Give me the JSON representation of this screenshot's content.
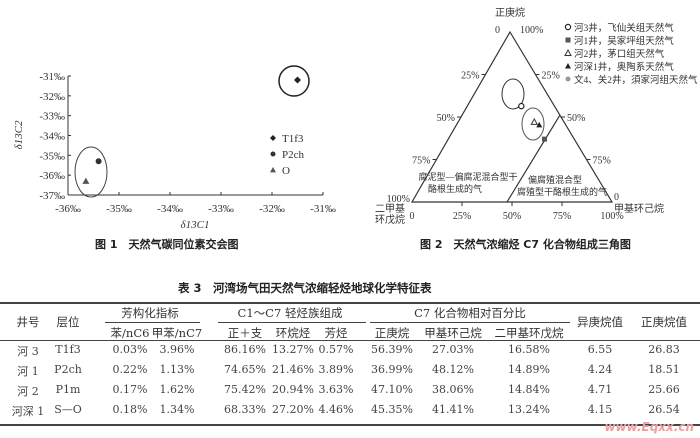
{
  "figure1": {
    "caption": "图 1　天然气碳同位素交会图",
    "chart_data": {
      "type": "scatter",
      "xlabel": "δ13C1",
      "ylabel": "δ13C2",
      "xlim": [
        -36,
        -31
      ],
      "ylim": [
        -37,
        -31
      ],
      "x_ticks": [
        "-36‰",
        "-35‰",
        "-34‰",
        "-33‰",
        "-32‰",
        "-31‰"
      ],
      "y_ticks": [
        "-31‰",
        "-32‰",
        "-33‰",
        "-34‰",
        "-35‰",
        "-36‰",
        "-37‰"
      ],
      "legend_position": "right",
      "series": [
        {
          "name": "T1f3",
          "marker": "diamond",
          "points": [
            [
              -31.5,
              -31.2
            ]
          ]
        },
        {
          "name": "P2ch",
          "marker": "circle",
          "points": [
            [
              -35.4,
              -35.3
            ]
          ]
        },
        {
          "name": "O",
          "marker": "triangle",
          "points": [
            [
              -35.65,
              -36.3
            ]
          ]
        }
      ]
    }
  },
  "figure2": {
    "caption": "图 2　天然气浓缩烃 C7 化合物组成三角图",
    "chart_data": {
      "type": "ternary",
      "apex_top": "正庚烷",
      "apex_right": "甲基环己烷",
      "apex_left": "二甲基环戊烷",
      "tick_labels": [
        "0",
        "25%",
        "50%",
        "75%",
        "100%"
      ],
      "regions": [
        "腐泥型—偏腐泥混合型干酪根生成的气",
        "偏腐殖混合型—腐殖型干酪根生成的气"
      ],
      "legend": [
        {
          "label": "河3井，飞仙关组天然气",
          "marker": "open-circle"
        },
        {
          "label": "河1井，吴家坪组天然气",
          "marker": "square"
        },
        {
          "label": "河2井，茅口组天然气",
          "marker": "open-triangle"
        },
        {
          "label": "河深1井，奥陶系天然气",
          "marker": "triangle"
        },
        {
          "label": "文4、关2井，須家河组天然气",
          "marker": "star"
        }
      ],
      "points": [
        {
          "well": "河3",
          "n_heptane": 56.39,
          "methylcyclohexane": 27.03,
          "dimethylcyclopentane": 16.58,
          "marker": "open-circle"
        },
        {
          "well": "河1",
          "n_heptane": 36.99,
          "methylcyclohexane": 48.12,
          "dimethylcyclopentane": 14.89,
          "marker": "square"
        },
        {
          "well": "河2",
          "n_heptane": 47.1,
          "methylcyclohexane": 38.06,
          "dimethylcyclopentane": 14.84,
          "marker": "open-triangle"
        },
        {
          "well": "河深1",
          "n_heptane": 45.35,
          "methylcyclohexane": 41.41,
          "dimethylcyclopentane": 13.24,
          "marker": "triangle"
        }
      ]
    }
  },
  "table3": {
    "title": "表 3　河湾场气田天然气浓缩轻烃地球化学特征表",
    "groups": [
      "芳构化指标",
      "C1～C7 轻烃族组成",
      "C7 化合物相对百分比"
    ],
    "headers": [
      "井号",
      "层位",
      "苯/nC6",
      "甲苯/nC7",
      "正＋支",
      "环烷烃",
      "芳烃",
      "正庚烷",
      "甲基环己烷",
      "二甲基环戊烷",
      "异庚烷值",
      "正庚烷值"
    ],
    "rows": [
      [
        "河 3",
        "T1f3",
        "0.03%",
        "3.96%",
        "86.16%",
        "13.27%",
        "0.57%",
        "56.39%",
        "27.03%",
        "16.58%",
        "6.55",
        "26.83"
      ],
      [
        "河 1",
        "P2ch",
        "0.22%",
        "1.13%",
        "74.65%",
        "21.46%",
        "3.89%",
        "36.99%",
        "48.12%",
        "14.89%",
        "4.24",
        "18.51"
      ],
      [
        "河 2",
        "P1m",
        "0.17%",
        "1.62%",
        "75.42%",
        "20.94%",
        "3.63%",
        "47.10%",
        "38.06%",
        "14.84%",
        "4.71",
        "25.66"
      ],
      [
        "河深 1",
        "S—O",
        "0.18%",
        "1.34%",
        "68.33%",
        "27.20%",
        "4.46%",
        "45.35%",
        "41.41%",
        "13.24%",
        "4.15",
        "26.54"
      ]
    ]
  },
  "watermark": "www.Eqxx.cn"
}
